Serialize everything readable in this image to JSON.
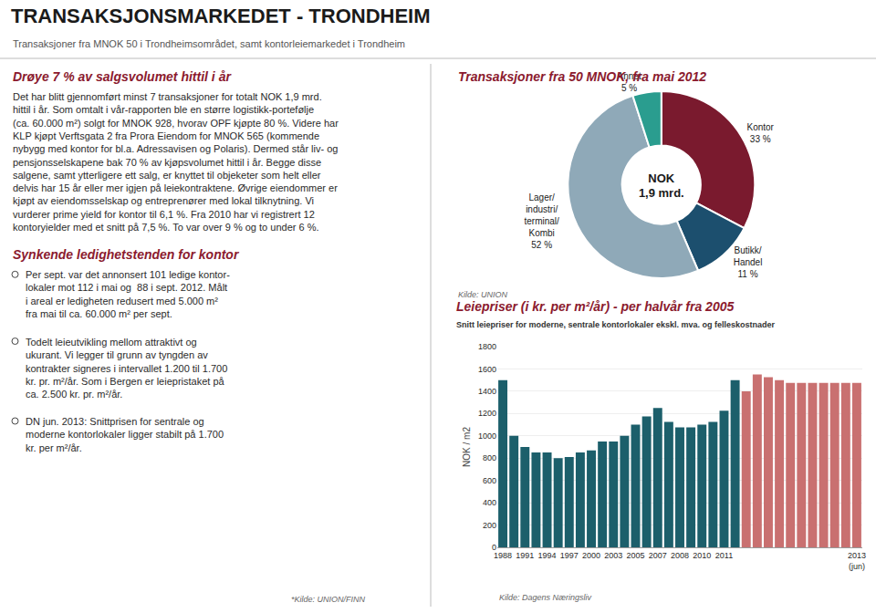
{
  "title": "TRANSAKSJONSMARKEDET - TRONDHEIM",
  "subtitle": "Transaksjoner fra MNOK 50 i Trondheimsområdet, samt kontorleiemarkedet i Trondheim",
  "sections": [
    {
      "title": "Drøye 7 % av salgsvolumet hittil i år",
      "text": [
        "Det har blitt gjennomført minst 7 transaksjoner for totalt NOK 1,9 mrd.",
        "hittil i år. Som omtalt i vår-rapporten ble en større logistikk-portefølje",
        "(ca. 60.000 m²) solgt for MNOK 928, hvorav OPF kjøpte 80 %. Videre har",
        "KLP kjøpt Verftsgata 2 fra Prora Eiendom for MNOK 565 (kommende",
        "nybygg med kontor for bl.a. Adressavisen og Polaris). Dermed står liv- og",
        "pensjonsselskapene bak 70 % av kjøpsvolumet hittil i år. Begge disse",
        "salgene, samt ytterligere ett salg, er knyttet til objeketer som helt eller",
        "delvis har 15 år eller mer igjen på leiekontraktene. Øvrige eiendommer er",
        "kjøpt av eiendomsselskap og entreprenører med lokal tilknytning. Vi",
        "vurderer prime yield for kontor til 6,1 %. Fra 2010 har vi registrert 12",
        "kontoryielder med et snitt på 7,5 %. To var over 9 % og to under 6 %."
      ]
    },
    {
      "title": "Synkende ledighetstenden for kontor",
      "bullets": [
        "Per sept. var det annonsert 101 ledige kontor-\nlokaler mot 112 i mai og  88 i sept. 2012. Målt\ni areal er ledigheten redusert med 5.000 m²\nfra mai til ca. 60.000 m² per sept.",
        "Todelt leieutvikling mellom attraktivt og\nukurant. Vi legger til grunn av tyngden av\nkontrakter signeres i intervallet 1.200 til 1.700\nkr. pr. m²/år. Som i Bergen er leiepristaket på\nca. 2.500 kr. pr. m²/år.",
        "DN jun. 2013: Snittprisen for sentrale og\nmoderne kontorlokaler ligger stabilt på 1.700\nkr. per m²/år."
      ],
      "source": "*Kilde: UNION/FINN"
    }
  ],
  "chart_data": [
    {
      "type": "pie",
      "title": "Transaksjoner fra 50 MNOK, fra mai 2012",
      "categories": [
        "Kontor",
        "Butikk/\nHandel",
        "Lager/\nindustri/\nterminal/\nKombi",
        "Annet"
      ],
      "values": [
        33,
        11,
        52,
        5
      ],
      "value_labels": [
        "33 %",
        "11 %",
        "52 %",
        "5 %"
      ],
      "colors": [
        "#7a1a2e",
        "#1c4f6e",
        "#8fa9b8",
        "#2a9d8f"
      ],
      "annotations": [
        "NOK",
        "1,9 mrd."
      ],
      "source": "Kilde: UNION"
    },
    {
      "type": "bar",
      "title": "Leiepriser (i kr. per m²/år) - per halvår fra 2005",
      "subtitle": "Snitt leiepriser for moderne, sentrale kontorlokaler ekskl. mva. og felleskostnader",
      "categories": [
        "1988",
        null,
        "1991",
        null,
        "1994",
        null,
        "1997",
        null,
        "2000",
        null,
        "2003",
        null,
        "2005",
        null,
        "2007",
        null,
        "2008",
        null,
        "2010",
        null,
        "2011",
        null,
        null,
        null,
        null,
        null,
        null,
        null,
        null,
        null,
        null,
        null,
        "2013\n(jun)"
      ],
      "values": [
        1500,
        1000,
        900,
        850,
        850,
        800,
        810,
        850,
        870,
        950,
        950,
        1000,
        1100,
        1175,
        1250,
        1125,
        1075,
        1075,
        1100,
        1125,
        1225,
        1500,
        1400,
        1550,
        1525,
        1500,
        1475,
        1475,
        1475,
        1475,
        1475,
        1475,
        1475
      ],
      "colors": [
        "#1c5f6b",
        "#1c5f6b",
        "#1c5f6b",
        "#1c5f6b",
        "#1c5f6b",
        "#1c5f6b",
        "#1c5f6b",
        "#1c5f6b",
        "#1c5f6b",
        "#1c5f6b",
        "#1c5f6b",
        "#1c5f6b",
        "#1c5f6b",
        "#1c5f6b",
        "#1c5f6b",
        "#1c5f6b",
        "#1c5f6b",
        "#1c5f6b",
        "#1c5f6b",
        "#1c5f6b",
        "#1c5f6b",
        "#1c5f6b",
        "#c97070",
        "#c97070",
        "#c97070",
        "#c97070",
        "#c97070",
        "#c97070",
        "#c97070",
        "#c97070",
        "#c97070",
        "#c97070",
        "#c97070"
      ],
      "ylim": [
        0,
        1800
      ],
      "yticks": [
        0,
        200,
        400,
        600,
        800,
        1000,
        1200,
        1400,
        1600,
        1800
      ],
      "ylabel": "NOK / m2",
      "grid": true,
      "source": "Kilde: Dagens Næringsliv"
    }
  ]
}
